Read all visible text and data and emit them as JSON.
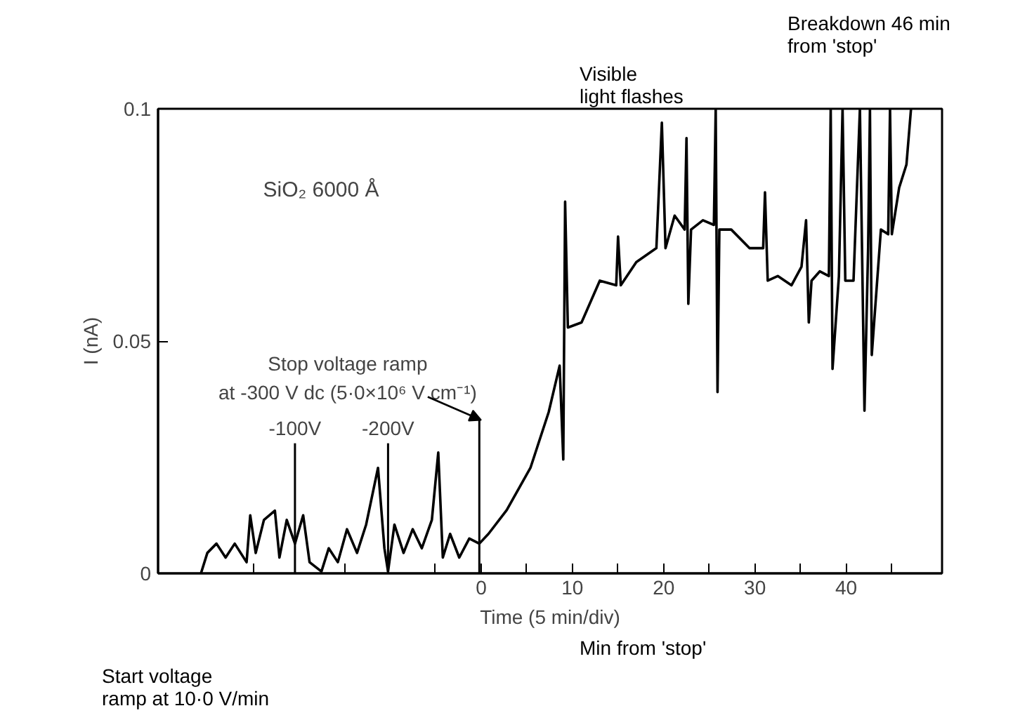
{
  "chart_data": {
    "type": "line",
    "xlabel": "Time (5 min/div)",
    "ylabel": "I (nA)",
    "annotations": [
      "SiO₂ 6000 Å",
      {
        "text": "Stop voltage ramp\nat -300 V dc (5·0×10⁶ V cm⁻¹)",
        "x": 0,
        "y": 0.033
      },
      "Visible\nlight flashes",
      "Breakdown 46 min\nfrom 'stop'",
      "Min from 'stop'",
      "Start voltage\nramp at 10·0 V/min"
    ],
    "x": [
      -30.7,
      -30.0,
      -29.0,
      -28.0,
      -27.0,
      -25.7,
      -25.3,
      -24.7,
      -23.8,
      -22.6,
      -22.1,
      -21.3,
      -20.4,
      -19.5,
      -18.8,
      -17.5,
      -16.7,
      -15.7,
      -14.7,
      -13.6,
      -12.6,
      -11.3,
      -10.6,
      -10.2,
      -9.5,
      -8.5,
      -7.5,
      -6.5,
      -5.4,
      -4.7,
      -4.2,
      -3.4,
      -2.4,
      -1.3,
      -0.2,
      0.8,
      2.8,
      5.4,
      7.4,
      8.6,
      9.0,
      9.2,
      9.5,
      11.0,
      13.0,
      14.8,
      15.0,
      15.3,
      17.0,
      19.2,
      19.8,
      20.2,
      21.2,
      22.3,
      22.5,
      22.7,
      23.0,
      24.3,
      25.5,
      25.7,
      25.9,
      26.1,
      27.4,
      29.4,
      30.9,
      31.1,
      31.4,
      32.5,
      34.0,
      35.1,
      35.6,
      35.9,
      36.2,
      37.1,
      38.1,
      38.3,
      38.5,
      39.2,
      39.6,
      39.9,
      40.8,
      41.5,
      42.0,
      42.4,
      42.6,
      42.8,
      43.8,
      44.6,
      44.8,
      45.0,
      45.8,
      46.6,
      47.1
    ],
    "series": [
      {
        "color": "#000000",
        "values": [
          0,
          0.0044,
          0.0064,
          0.0034,
          0.0064,
          0.0024,
          0.0125,
          0.0044,
          0.0115,
          0.0135,
          0.0034,
          0.0115,
          0.0064,
          0.0125,
          0.0024,
          0.0004,
          0.0054,
          0.0024,
          0.0095,
          0.0044,
          0.0105,
          0.0227,
          0.0054,
          0.0004,
          0.0105,
          0.0044,
          0.0095,
          0.0054,
          0.0115,
          0.026,
          0.0034,
          0.0085,
          0.0034,
          0.0075,
          0.0064,
          0.0085,
          0.0136,
          0.0227,
          0.0347,
          0.0447,
          0.0245,
          0.08,
          0.0529,
          0.054,
          0.063,
          0.062,
          0.0725,
          0.062,
          0.067,
          0.07,
          0.097,
          0.07,
          0.077,
          0.074,
          0.0937,
          0.058,
          0.074,
          0.076,
          0.075,
          0.1,
          0.039,
          0.074,
          0.074,
          0.07,
          0.07,
          0.082,
          0.063,
          0.064,
          0.062,
          0.066,
          0.076,
          0.054,
          0.063,
          0.065,
          0.064,
          0.1,
          0.044,
          0.064,
          0.1,
          0.063,
          0.063,
          0.1,
          0.035,
          0.07,
          0.1,
          0.047,
          0.074,
          0.073,
          0.1,
          0.073,
          0.083,
          0.088,
          0.1
        ]
      }
    ],
    "xlim": [
      -35.4,
      50.5
    ],
    "ylim": [
      0,
      0.1
    ],
    "xticks": [
      {
        "value": -25,
        "label": null
      },
      {
        "value": -15,
        "label": null
      },
      {
        "value": -5,
        "label": null
      },
      0,
      {
        "value": 5,
        "label": null
      },
      10,
      {
        "value": 15,
        "label": null
      },
      20,
      {
        "value": 25,
        "label": null
      },
      30,
      {
        "value": 35,
        "label": null
      },
      40,
      {
        "value": 45,
        "label": null
      }
    ],
    "yticks": [
      0,
      0.05,
      0.1
    ],
    "ref_lines": [
      {
        "axis": "x",
        "value": -20.4,
        "label": "-100V"
      },
      {
        "axis": "x",
        "value": -10.2,
        "label": "-200V"
      },
      {
        "axis": "x",
        "value": -0.2,
        "label": null
      }
    ]
  }
}
